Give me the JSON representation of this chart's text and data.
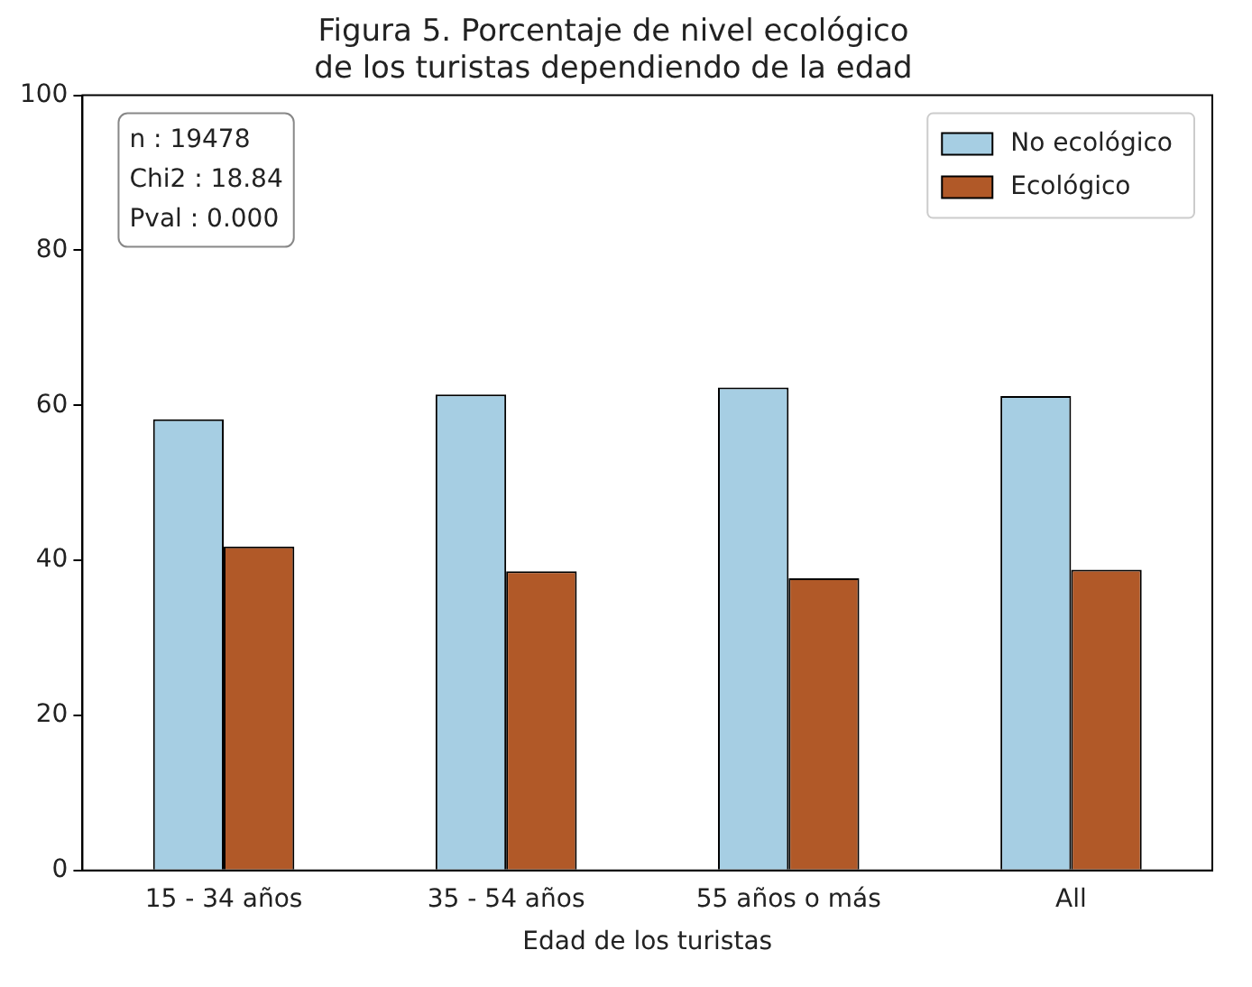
{
  "chart_data": {
    "type": "bar",
    "title": "Figura 5. Porcentaje de nivel ecológico\nde los turistas dependiendo de la edad",
    "xlabel": "Edad de los turistas",
    "categories": [
      "15 - 34 años",
      "35 - 54 años",
      "55 años o más",
      "All"
    ],
    "series": [
      {
        "name": "No ecológico",
        "color": "#a6cee3",
        "values": [
          58.2,
          61.4,
          62.3,
          61.2
        ]
      },
      {
        "name": "Ecológico",
        "color": "#b15928",
        "values": [
          41.8,
          38.6,
          37.7,
          38.8
        ]
      }
    ],
    "ylim": [
      0,
      100
    ],
    "yticks": [
      0,
      20,
      40,
      60,
      80,
      100
    ],
    "grid": false,
    "legend": "top right",
    "annotations": [
      "n : 19478\nChi2 : 18.84\nPval : 0.000"
    ]
  }
}
